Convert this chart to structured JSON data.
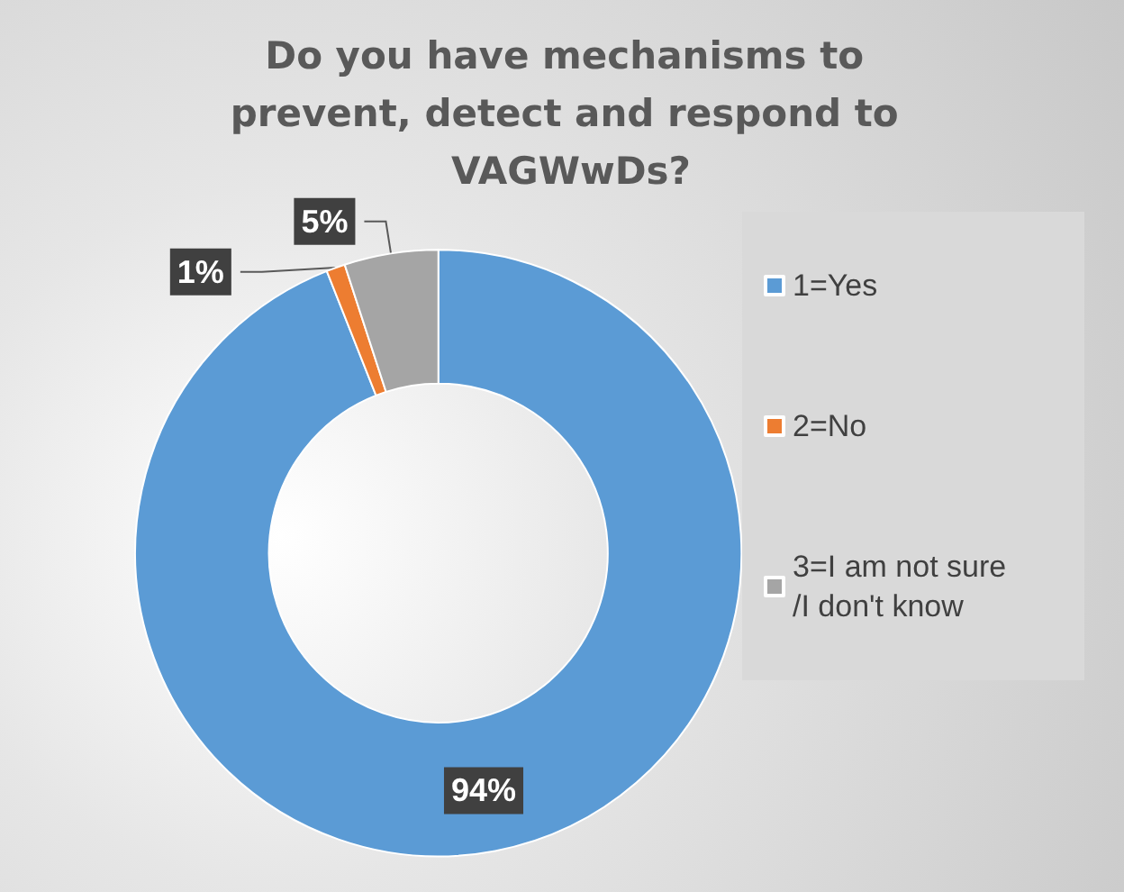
{
  "chart_data": {
    "type": "donut",
    "title": "Do you have mechanisms to prevent, detect and respond to VAGWwDs?",
    "categories": [
      "1=Yes",
      "2=No",
      "3=I am not sure/I don't know"
    ],
    "values": [
      94,
      1,
      5
    ],
    "colors": [
      "#5b9bd5",
      "#ed7d31",
      "#a5a5a5"
    ],
    "value_labels": [
      "94%",
      "1%",
      "5%"
    ],
    "legend": "right"
  }
}
